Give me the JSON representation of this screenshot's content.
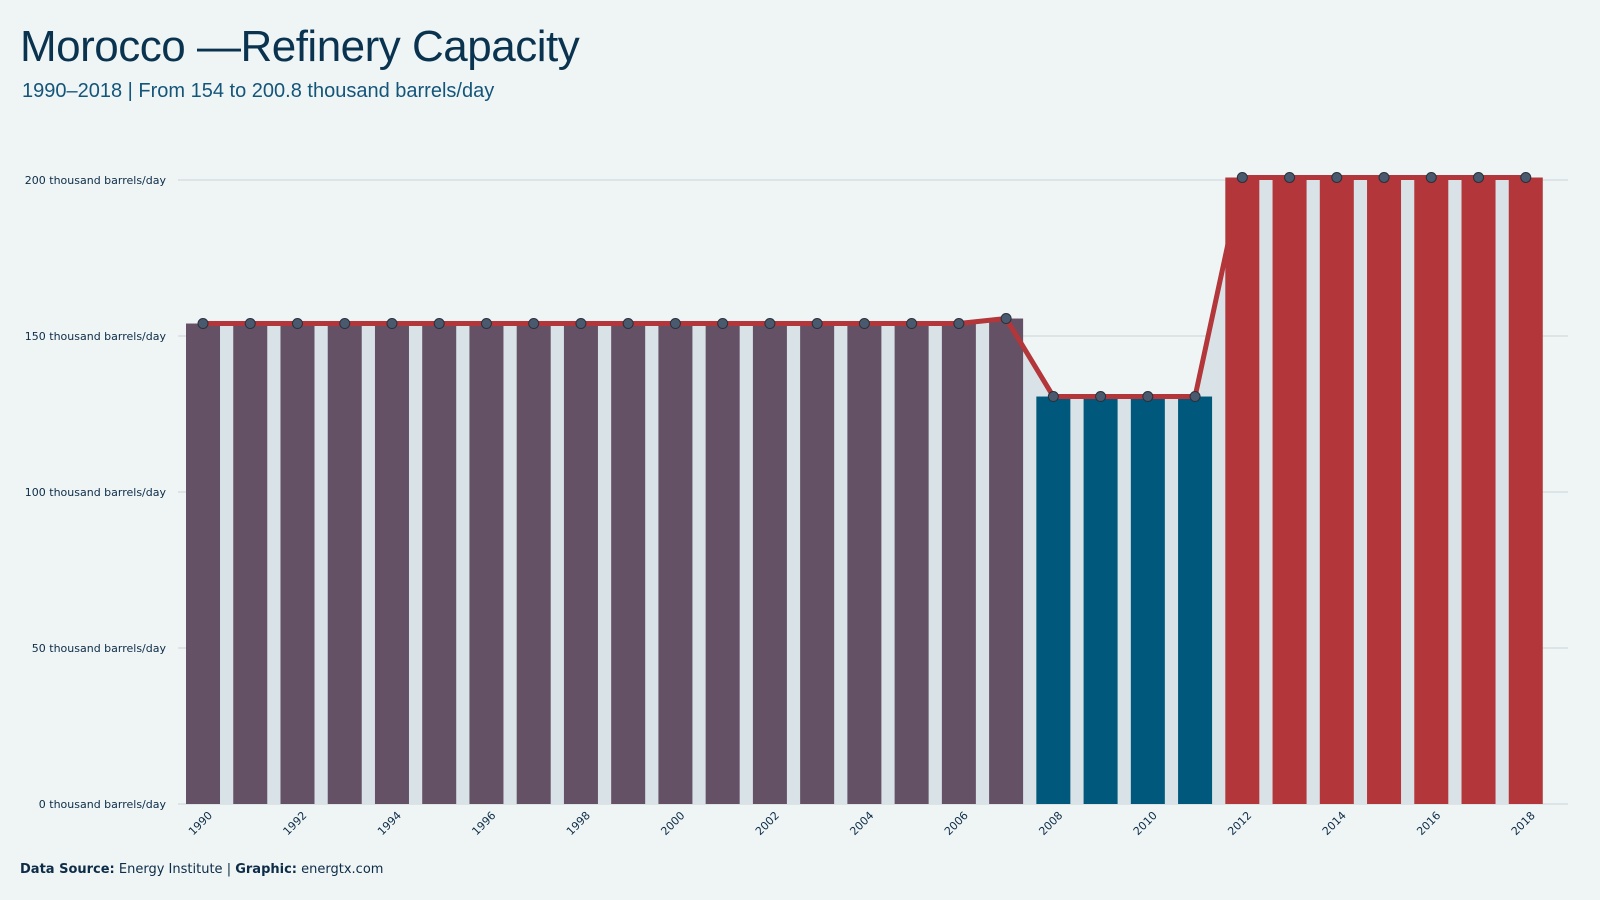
{
  "title": "Morocco —Refinery Capacity",
  "subtitle": "1990–2018 | From 154 to 200.8 thousand barrels/day",
  "footer": {
    "source_label": "Data Source:",
    "source_value": "Energy Institute",
    "separator": "|",
    "graphic_label": "Graphic:",
    "graphic_value": "energtx.com"
  },
  "colors": {
    "background": "#eff5f5",
    "period_1": "#655165",
    "period_2": "#00587c",
    "period_3": "#b2363a",
    "line": "#b2363a",
    "area": "#d9e3e7",
    "marker": "#4a5a6e"
  },
  "chart_data": {
    "type": "bar",
    "ylabel_unit": "thousand barrels/day",
    "ylim": [
      0,
      200
    ],
    "yticks": [
      0,
      50,
      100,
      150,
      200
    ],
    "ytick_labels": [
      "0 thousand barrels/day",
      "50 thousand barrels/day",
      "100 thousand barrels/day",
      "150 thousand barrels/day",
      "200 thousand barrels/day"
    ],
    "xtick_labels": [
      "1990",
      "1992",
      "1994",
      "1996",
      "1998",
      "2000",
      "2002",
      "2004",
      "2006",
      "2008",
      "2010",
      "2012",
      "2014",
      "2016",
      "2018"
    ],
    "grid": true,
    "categories": [
      "1990",
      "1991",
      "1992",
      "1993",
      "1994",
      "1995",
      "1996",
      "1997",
      "1998",
      "1999",
      "2000",
      "2001",
      "2002",
      "2003",
      "2004",
      "2005",
      "2006",
      "2007",
      "2008",
      "2009",
      "2010",
      "2011",
      "2012",
      "2013",
      "2014",
      "2015",
      "2016",
      "2017",
      "2018"
    ],
    "values": [
      154,
      154,
      154,
      154,
      154,
      154,
      154,
      154,
      154,
      154,
      154,
      154,
      154,
      154,
      154,
      154,
      154,
      155.6,
      130.6,
      130.6,
      130.6,
      130.6,
      200.8,
      200.8,
      200.8,
      200.8,
      200.8,
      200.8,
      200.8
    ],
    "periods": [
      {
        "from": "1990",
        "to": "2007",
        "color": "#655165"
      },
      {
        "from": "2008",
        "to": "2011",
        "color": "#00587c"
      },
      {
        "from": "2012",
        "to": "2018",
        "color": "#b2363a"
      }
    ],
    "overlay": {
      "line": true,
      "markers": true,
      "area": true
    }
  }
}
